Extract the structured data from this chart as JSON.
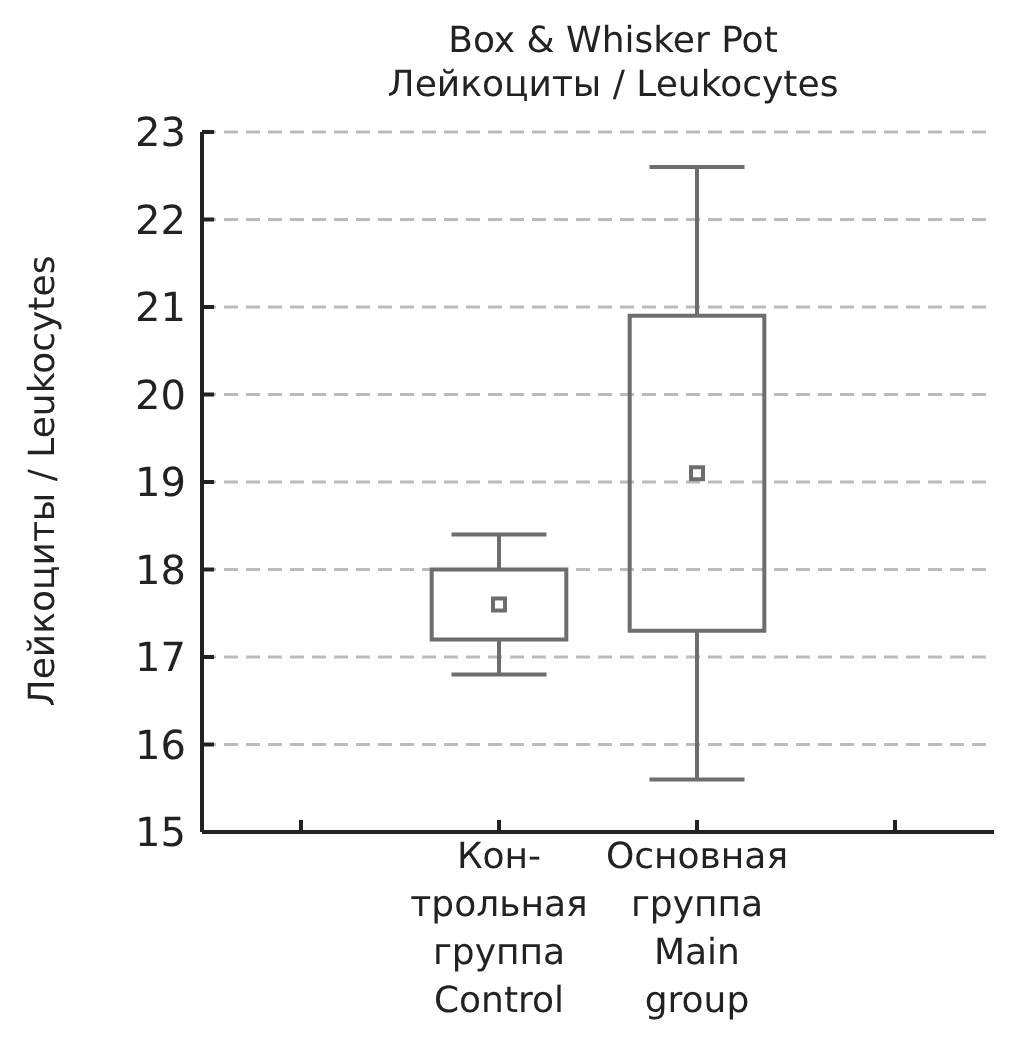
{
  "chart_data": {
    "type": "box",
    "title": "Box & Whisker Pot",
    "subtitle": "Лейкоциты / Leukocytes",
    "ylabel": "Лейкоциты / Leukocytes",
    "categories": [
      null,
      "Кон-\nтрольная\nгруппа\nControl",
      "Основная\nгруппа\nMain\ngroup",
      null
    ],
    "boxes": [
      null,
      {
        "low": 16.8,
        "q1": 17.2,
        "median": 17.6,
        "q3": 18.0,
        "high": 18.4
      },
      {
        "low": 15.6,
        "q1": 17.3,
        "median": 19.1,
        "q3": 20.9,
        "high": 22.6
      },
      null
    ],
    "color": "#6d6d6d",
    "ylim": [
      15,
      23
    ],
    "yticks": [
      15,
      16,
      17,
      18,
      19,
      20,
      21,
      22,
      23
    ],
    "grid": "y",
    "marker": "square"
  }
}
